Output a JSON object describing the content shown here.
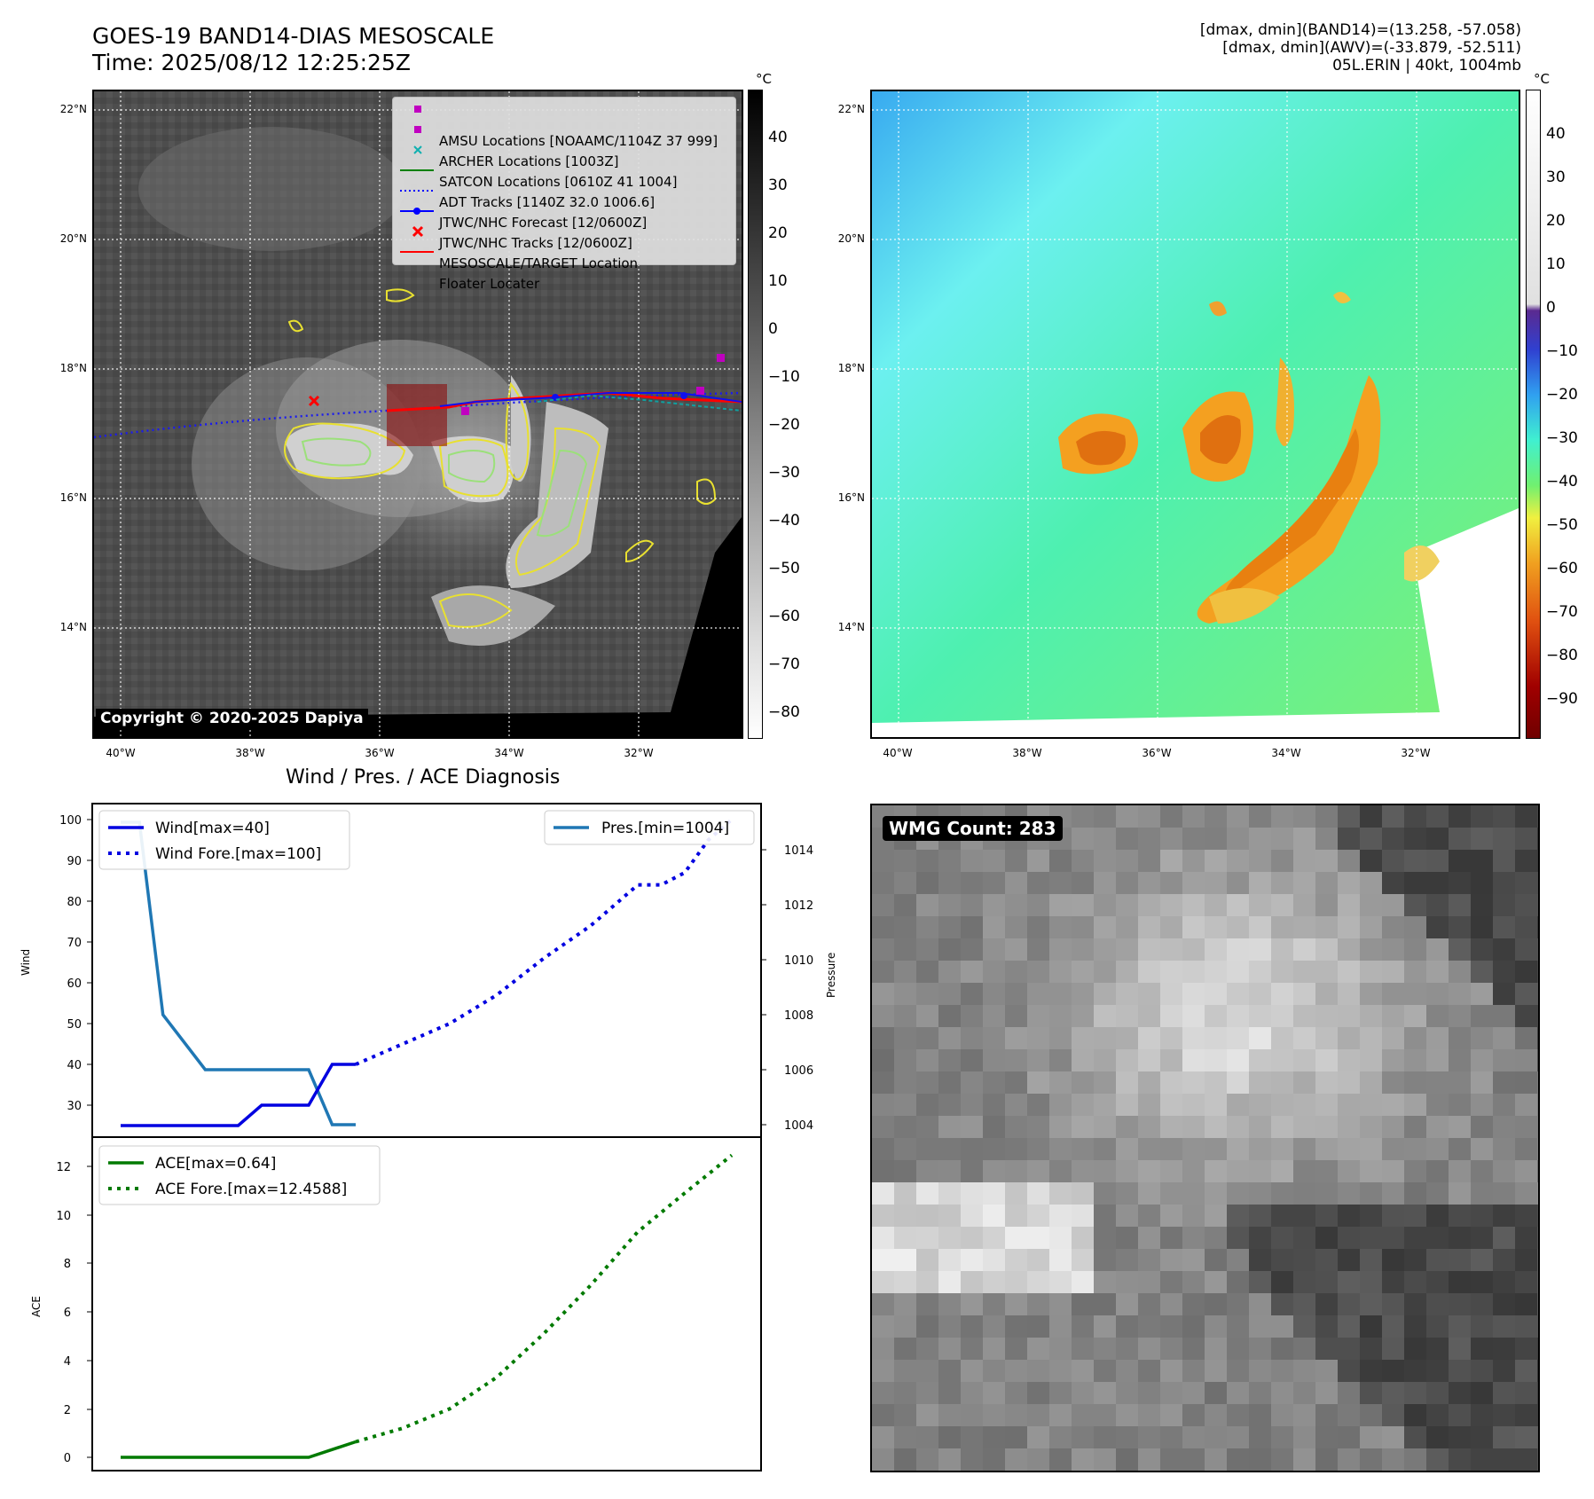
{
  "header": {
    "title_line1": "GOES-19 BAND14-DIAS MESOSCALE",
    "title_line2": "Time: 2025/08/12 12:25:25Z",
    "info_line1": "[dmax, dmin](BAND14)=(13.258, -57.058)",
    "info_line2": "[dmax, dmin](AWV)=(-33.879, -52.511)",
    "info_line3": "05L.ERIN | 40kt, 1004mb"
  },
  "map": {
    "lat_labels": [
      "22°N",
      "20°N",
      "18°N",
      "16°N",
      "14°N"
    ],
    "lon_labels": [
      "40°W",
      "38°W",
      "36°W",
      "34°W",
      "32°W"
    ],
    "copyright": "Copyright © 2020-2025 Dapiya",
    "legend": [
      {
        "label": "AMSU Locations [NOAAMC/1104Z 37 999]",
        "symbol": "square",
        "color": "#c000c0"
      },
      {
        "label": "ARCHER Locations [1003Z]",
        "symbol": "square",
        "color": "#c000c0"
      },
      {
        "label": "SATCON Locations [0610Z 41 1004]",
        "symbol": "x",
        "color": "#10b0b0"
      },
      {
        "label": "ADT Tracks [1140Z 32.0 1006.6]",
        "symbol": "line",
        "color": "#008000"
      },
      {
        "label": "JTWC/NHC Forecast [12/0600Z]",
        "symbol": "dotted",
        "color": "#0000ff"
      },
      {
        "label": "JTWC/NHC Tracks [12/0600Z]",
        "symbol": "line-dot",
        "color": "#0000ff"
      },
      {
        "label": "MESOSCALE/TARGET Location",
        "symbol": "x",
        "color": "#ff0000"
      },
      {
        "label": "Floater Locater",
        "symbol": "line",
        "color": "#ff0000"
      }
    ]
  },
  "colorbar_gray": {
    "unit": "°C",
    "ticks": [
      "40",
      "30",
      "20",
      "10",
      "0",
      "−10",
      "−20",
      "−30",
      "−40",
      "−50",
      "−60",
      "−70",
      "−80"
    ]
  },
  "colorbar_color": {
    "unit": "°C",
    "ticks": [
      "40",
      "30",
      "20",
      "10",
      "0",
      "−10",
      "−20",
      "−30",
      "−40",
      "−50",
      "−60",
      "−70",
      "−80",
      "−90"
    ]
  },
  "wmg": {
    "label": "WMG Count: 283"
  },
  "diagnosis": {
    "title": "Wind / Pres. / ACE Diagnosis",
    "wind_ylabel": "Wind",
    "pres_ylabel": "Pressure",
    "ace_ylabel": "ACE",
    "wind_ticks": [
      "100",
      "90",
      "80",
      "70",
      "60",
      "50",
      "40",
      "30"
    ],
    "pres_ticks": [
      "1014",
      "1012",
      "1010",
      "1008",
      "1006",
      "1004"
    ],
    "ace_ticks": [
      "12",
      "10",
      "8",
      "6",
      "4",
      "2",
      "0"
    ],
    "legend_wind": "Wind[max=40]",
    "legend_wind_fore": "Wind Fore.[max=100]",
    "legend_pres": "Pres.[min=1004]",
    "legend_ace": "ACE[max=0.64]",
    "legend_ace_fore": "ACE Fore.[max=12.4588]"
  },
  "chart_data": {
    "type": "line",
    "title": "Wind / Pres. / ACE Diagnosis",
    "colors": {
      "wind": "#0000e0",
      "pressure": "#1f77b4",
      "ace": "#007a00"
    },
    "wind": {
      "x": [
        0,
        1,
        2,
        3,
        4,
        5,
        6,
        7,
        8,
        9,
        10
      ],
      "values": [
        25,
        25,
        25,
        25,
        25,
        25,
        30,
        30,
        30,
        40,
        40
      ],
      "ylim": [
        25,
        100
      ]
    },
    "wind_forecast": {
      "x": [
        10,
        12,
        14,
        16,
        18,
        20,
        22,
        23,
        24,
        25,
        26
      ],
      "values": [
        40,
        45,
        50,
        57,
        66,
        74,
        84,
        84,
        87,
        95,
        100
      ]
    },
    "pressure": {
      "x": [
        0,
        0.8,
        1.8,
        3.6,
        5,
        6,
        8,
        9,
        10
      ],
      "values": [
        1015,
        1015,
        1008,
        1006,
        1006,
        1006,
        1006,
        1004,
        1004
      ],
      "ylim": [
        1003.5,
        1015.5
      ]
    },
    "ace": {
      "x": [
        0,
        2,
        4,
        6,
        8,
        10
      ],
      "values": [
        0,
        0,
        0,
        0,
        0,
        0.64
      ],
      "ylim": [
        -0.4,
        13.1
      ]
    },
    "ace_forecast": {
      "x": [
        10,
        12,
        14,
        16,
        18,
        20,
        22,
        24,
        26
      ],
      "values": [
        0.64,
        1.2,
        2.0,
        3.3,
        5.1,
        7.1,
        9.3,
        10.9,
        12.46
      ]
    }
  }
}
